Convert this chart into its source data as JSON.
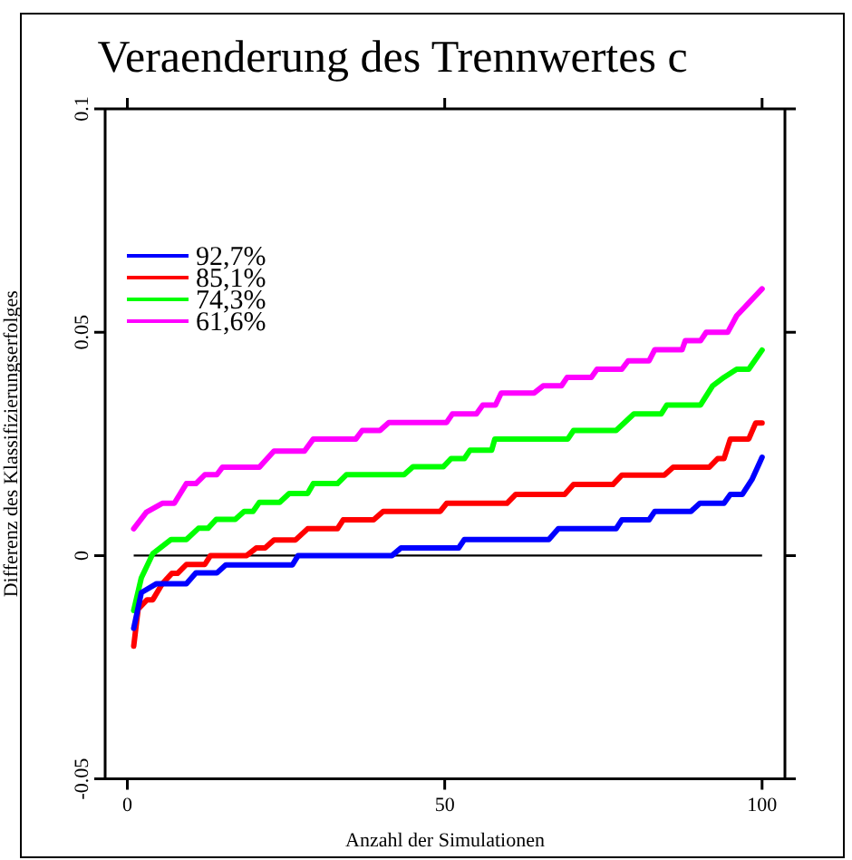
{
  "chart_data": {
    "type": "line",
    "title": "Veraenderung des Trennwertes c",
    "xlabel": "Anzahl der Simulationen",
    "ylabel": "Differenz des Klassifizierungserfolges",
    "xlim": [
      -3.5,
      103.6
    ],
    "xticks": [
      0,
      50,
      100
    ],
    "ylim": [
      -0.05,
      0.1
    ],
    "yticks": [
      -0.05,
      0,
      0.05,
      0.1
    ],
    "grid": false,
    "legend": "top left",
    "marker": "none",
    "line_style": "solid",
    "ref_lines": [
      {
        "axis": "y",
        "value": 0,
        "color": "#000000"
      }
    ],
    "series": [
      {
        "name": "92,7%",
        "color": "#0000ff",
        "x": [
          1,
          2.2,
          4.6,
          9.3,
          10.8,
          14.1,
          15.5,
          26,
          26.9,
          41.7,
          43.1,
          52.2,
          53.1,
          66.4,
          67.9,
          77,
          77.9,
          82.2,
          83.1,
          88.8,
          90.2,
          94,
          95,
          96.9,
          98.4,
          100
        ],
        "values": [
          -0.0163,
          -0.0083,
          -0.0063,
          -0.0063,
          -0.0039,
          -0.0039,
          -0.0021,
          -0.0021,
          0,
          0,
          0.0017,
          0.0017,
          0.0036,
          0.0036,
          0.006,
          0.006,
          0.008,
          0.008,
          0.0099,
          0.0099,
          0.0117,
          0.0117,
          0.0137,
          0.0137,
          0.017,
          0.022
        ]
      },
      {
        "name": "85,1%",
        "color": "#ff0000",
        "x": [
          1,
          1.7,
          3.1,
          4,
          5.5,
          7,
          7.9,
          9.3,
          12.2,
          13.1,
          18.8,
          20.3,
          21.7,
          23.1,
          26.5,
          28.4,
          33.1,
          34,
          38.8,
          40.3,
          49.3,
          50.3,
          59.8,
          61.2,
          68.9,
          70.3,
          76.5,
          77.9,
          84.6,
          86,
          91.7,
          93,
          94,
          95,
          97.9,
          99,
          100
        ],
        "values": [
          -0.0203,
          -0.012,
          -0.0099,
          -0.0099,
          -0.0063,
          -0.004,
          -0.004,
          -0.002,
          -0.002,
          0,
          0,
          0.0017,
          0.0017,
          0.0035,
          0.0035,
          0.006,
          0.006,
          0.008,
          0.008,
          0.0099,
          0.0099,
          0.0117,
          0.0117,
          0.0137,
          0.0137,
          0.0159,
          0.0159,
          0.018,
          0.018,
          0.0198,
          0.0198,
          0.0217,
          0.0217,
          0.0261,
          0.0261,
          0.0297,
          0.0297
        ]
      },
      {
        "name": "74,3%",
        "color": "#00ff00",
        "x": [
          1,
          2.2,
          4,
          6.9,
          9.3,
          11.2,
          12.7,
          14,
          17,
          18.4,
          19.8,
          20.8,
          24,
          25.5,
          28.4,
          29.3,
          33.1,
          34.5,
          43.6,
          45,
          49.8,
          51,
          53.1,
          54,
          57.4,
          57.9,
          69.4,
          70.3,
          77,
          79.8,
          84.1,
          85,
          90.3,
          92.2,
          94,
          96,
          97.9,
          100
        ],
        "values": [
          -0.0123,
          -0.005,
          0.0004,
          0.0036,
          0.0036,
          0.0061,
          0.0061,
          0.0081,
          0.0081,
          0.0099,
          0.0099,
          0.0119,
          0.0119,
          0.0139,
          0.0139,
          0.0161,
          0.0161,
          0.0181,
          0.0181,
          0.0199,
          0.0199,
          0.0217,
          0.0217,
          0.0236,
          0.0236,
          0.0261,
          0.0261,
          0.028,
          0.028,
          0.0317,
          0.0317,
          0.0337,
          0.0337,
          0.038,
          0.0399,
          0.0417,
          0.0417,
          0.046
        ]
      },
      {
        "name": "61,6%",
        "color": "#ff00ff",
        "x": [
          1,
          3,
          5.5,
          7.4,
          9.3,
          10.8,
          12.2,
          14.1,
          15,
          20.8,
          23.1,
          27.9,
          29.3,
          36,
          37,
          39.8,
          41.2,
          50.3,
          51.2,
          55,
          56,
          58,
          58.9,
          64.1,
          65.5,
          68.4,
          69.3,
          73.1,
          74,
          77.9,
          78.9,
          82.2,
          83.1,
          87.4,
          87.9,
          90.3,
          91.2,
          94.6,
          96,
          100
        ],
        "values": [
          0.006,
          0.0097,
          0.0117,
          0.0117,
          0.0161,
          0.0161,
          0.0181,
          0.0181,
          0.0198,
          0.0198,
          0.0234,
          0.0234,
          0.0261,
          0.0261,
          0.028,
          0.028,
          0.0298,
          0.0298,
          0.0317,
          0.0317,
          0.0337,
          0.0337,
          0.0364,
          0.0364,
          0.038,
          0.038,
          0.0399,
          0.0399,
          0.0417,
          0.0417,
          0.0436,
          0.0436,
          0.0461,
          0.0461,
          0.0481,
          0.0481,
          0.05,
          0.05,
          0.0537,
          0.0597
        ]
      }
    ]
  }
}
